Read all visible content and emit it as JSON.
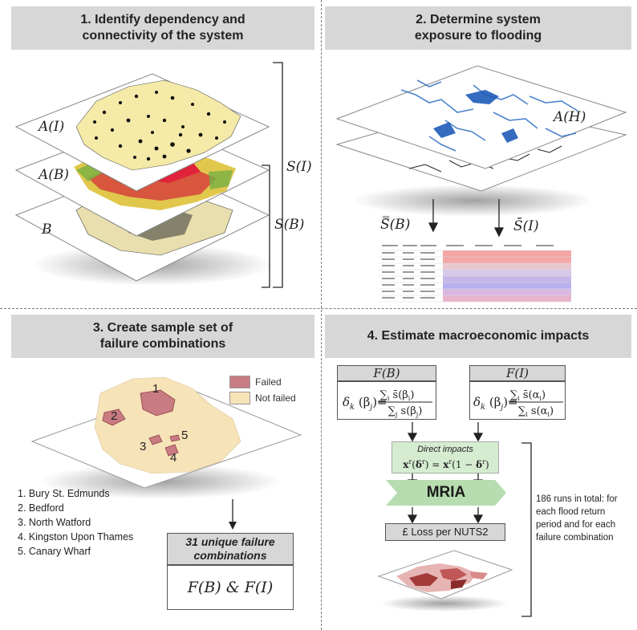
{
  "panels": {
    "p1": {
      "line1": "1. Identify dependency and",
      "line2": "connectivity of the system"
    },
    "p2": {
      "line1": "2. Determine system",
      "line2": "exposure to flooding"
    },
    "p3": {
      "line1": "3. Create sample set of",
      "line2": "failure combinations"
    },
    "p4": {
      "line1": "4. Estimate macroeconomic impacts"
    }
  },
  "layers": {
    "a_i": "A(I)",
    "a_b": "A(B)",
    "b": "B",
    "s_i": "S(I)",
    "s_b": "S(B)",
    "a_h": "A(H)",
    "sbar_b": "S̿(B)",
    "sbar_i": "S̄(I)"
  },
  "legend": {
    "failed": "Failed",
    "not_failed": "Not failed",
    "failed_color": "#c97b82",
    "not_failed_color": "#f7e3b8"
  },
  "map_numbers": [
    "1",
    "2",
    "3",
    "4",
    "5"
  ],
  "places": [
    "1. Bury St. Edmunds",
    "2. Bedford",
    "3. North Watford",
    "4. Kingston Upon Thames",
    "5. Canary Wharf"
  ],
  "combinations": {
    "title": "31 unique failure combinations",
    "formula": "F(B) & F(I)"
  },
  "impacts": {
    "f_b": "F(B)",
    "f_i": "F(I)",
    "direct_title": "Direct impacts",
    "mria": "MRIA",
    "loss": "£ Loss per NUTS2",
    "runs_note": "186 runs in total: for each flood return period and for each failure combination"
  }
}
